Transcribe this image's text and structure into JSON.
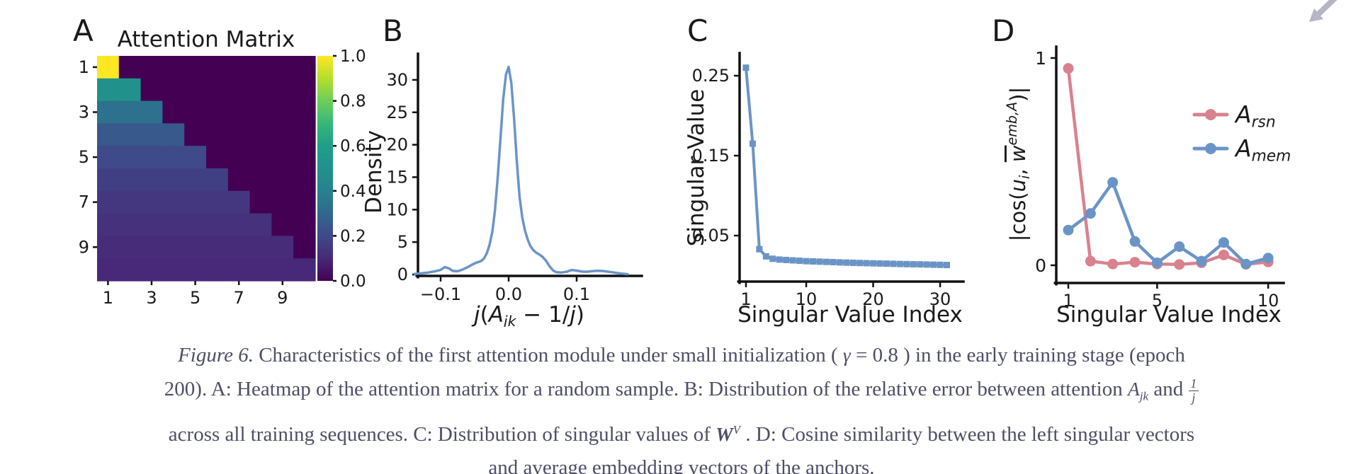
{
  "page": {
    "background": "#ffffff",
    "text_color": "#1a1a1a",
    "caption_color": "#4e4e67"
  },
  "corner_icon": {
    "name": "collapse-arrow",
    "color": "#b5b5c5"
  },
  "colors": {
    "blue_series": "#6b94c6",
    "pink_series": "#d9818f",
    "viridis_min": "#440154",
    "viridis_max": "#fde725"
  },
  "chart_data": [
    {
      "id": "A",
      "panel_label": "A",
      "type": "heatmap",
      "title": "Attention Matrix",
      "colormap": "viridis",
      "vmin": 0.0,
      "vmax": 1.0,
      "x_ticks": [
        "1",
        "3",
        "5",
        "7",
        "9"
      ],
      "y_ticks": [
        "1",
        "3",
        "5",
        "7",
        "9"
      ],
      "colorbar_ticks": [
        "1.0",
        "0.8",
        "0.6",
        "0.4",
        "0.2",
        "0.0"
      ],
      "matrix": [
        [
          1.0,
          0,
          0,
          0,
          0,
          0,
          0,
          0,
          0,
          0
        ],
        [
          0.5,
          0.5,
          0,
          0,
          0,
          0,
          0,
          0,
          0,
          0
        ],
        [
          0.333,
          0.333,
          0.333,
          0,
          0,
          0,
          0,
          0,
          0,
          0
        ],
        [
          0.25,
          0.25,
          0.25,
          0.25,
          0,
          0,
          0,
          0,
          0,
          0
        ],
        [
          0.2,
          0.2,
          0.2,
          0.2,
          0.2,
          0,
          0,
          0,
          0,
          0
        ],
        [
          0.167,
          0.167,
          0.167,
          0.167,
          0.167,
          0.167,
          0,
          0,
          0,
          0
        ],
        [
          0.143,
          0.143,
          0.143,
          0.143,
          0.143,
          0.143,
          0.143,
          0,
          0,
          0
        ],
        [
          0.125,
          0.125,
          0.125,
          0.125,
          0.125,
          0.125,
          0.125,
          0.125,
          0,
          0
        ],
        [
          0.111,
          0.111,
          0.111,
          0.111,
          0.111,
          0.111,
          0.111,
          0.111,
          0.111,
          0
        ],
        [
          0.1,
          0.1,
          0.1,
          0.1,
          0.1,
          0.1,
          0.1,
          0.1,
          0.1,
          0.1
        ]
      ]
    },
    {
      "id": "B",
      "panel_label": "B",
      "type": "line",
      "ylabel": "Density",
      "xlabel_text": "j(Ajk − 1/j)",
      "xlabel_parts": [
        {
          "t": "j",
          "i": 1
        },
        {
          "t": "("
        },
        {
          "t": "A",
          "i": 1
        },
        {
          "t": "jk",
          "i": 1,
          "sub": 1
        },
        {
          "t": " − 1/"
        },
        {
          "t": "j",
          "i": 1
        },
        {
          "t": ")"
        }
      ],
      "x_ticks": [
        "−0.1",
        "0.0",
        "0.1"
      ],
      "x_tick_values": [
        -0.1,
        0.0,
        0.1
      ],
      "y_ticks": [
        "0",
        "5",
        "10",
        "15",
        "20",
        "25",
        "30"
      ],
      "y_tick_values": [
        0,
        5,
        10,
        15,
        20,
        25,
        30
      ],
      "xlim": [
        -0.145,
        0.195
      ],
      "ylim": [
        0,
        34
      ],
      "color": "#6b94c6",
      "points": [
        [
          -0.138,
          0.1
        ],
        [
          -0.128,
          0.2
        ],
        [
          -0.118,
          0.3
        ],
        [
          -0.108,
          0.5
        ],
        [
          -0.1,
          0.7
        ],
        [
          -0.094,
          1.15
        ],
        [
          -0.088,
          0.95
        ],
        [
          -0.082,
          0.55
        ],
        [
          -0.075,
          0.5
        ],
        [
          -0.068,
          0.75
        ],
        [
          -0.06,
          1.15
        ],
        [
          -0.054,
          1.5
        ],
        [
          -0.048,
          1.8
        ],
        [
          -0.044,
          1.95
        ],
        [
          -0.04,
          2.1
        ],
        [
          -0.036,
          2.5
        ],
        [
          -0.032,
          3.3
        ],
        [
          -0.028,
          4.6
        ],
        [
          -0.024,
          6.6
        ],
        [
          -0.02,
          10
        ],
        [
          -0.016,
          15
        ],
        [
          -0.012,
          21
        ],
        [
          -0.008,
          27
        ],
        [
          -0.004,
          30.8
        ],
        [
          0,
          32
        ],
        [
          0.004,
          29.5
        ],
        [
          0.008,
          24
        ],
        [
          0.012,
          17.5
        ],
        [
          0.016,
          12
        ],
        [
          0.02,
          8.8
        ],
        [
          0.024,
          6.8
        ],
        [
          0.028,
          5.4
        ],
        [
          0.032,
          4.4
        ],
        [
          0.036,
          3.8
        ],
        [
          0.04,
          3.4
        ],
        [
          0.045,
          3.1
        ],
        [
          0.05,
          2.7
        ],
        [
          0.055,
          2.1
        ],
        [
          0.06,
          1.3
        ],
        [
          0.065,
          0.65
        ],
        [
          0.07,
          0.35
        ],
        [
          0.078,
          0.3
        ],
        [
          0.086,
          0.45
        ],
        [
          0.093,
          0.7
        ],
        [
          0.1,
          0.6
        ],
        [
          0.108,
          0.45
        ],
        [
          0.115,
          0.42
        ],
        [
          0.122,
          0.5
        ],
        [
          0.13,
          0.58
        ],
        [
          0.138,
          0.55
        ],
        [
          0.145,
          0.45
        ],
        [
          0.152,
          0.35
        ],
        [
          0.16,
          0.22
        ],
        [
          0.168,
          0.12
        ],
        [
          0.175,
          0.05
        ]
      ]
    },
    {
      "id": "C",
      "panel_label": "C",
      "type": "line",
      "marker": "square",
      "xlabel": "Singular Value Index",
      "ylabel": "Singular Value",
      "x_ticks": [
        "1",
        "10",
        "20",
        "30"
      ],
      "x_tick_values": [
        1,
        10,
        20,
        30
      ],
      "y_ticks": [
        "0.05",
        "0.15",
        "0.25"
      ],
      "y_tick_values": [
        0.05,
        0.15,
        0.25
      ],
      "color": "#6b94c6",
      "x_start": 1,
      "values": [
        0.26,
        0.165,
        0.033,
        0.024,
        0.021,
        0.02,
        0.0195,
        0.019,
        0.0185,
        0.018,
        0.0177,
        0.0174,
        0.0171,
        0.0168,
        0.0165,
        0.0162,
        0.016,
        0.0157,
        0.0155,
        0.0153,
        0.0151,
        0.0149,
        0.0147,
        0.0145,
        0.0143,
        0.0141,
        0.014,
        0.0138,
        0.0136,
        0.0134,
        0.0132
      ]
    },
    {
      "id": "D",
      "panel_label": "D",
      "type": "line",
      "marker": "circle",
      "xlabel": "Singular Value Index",
      "ylabel_text": "|cos(ui, w̄emb,A)|",
      "ylabel_parts": [
        {
          "t": "|cos("
        },
        {
          "t": "u",
          "i": 1
        },
        {
          "t": "i",
          "i": 1,
          "sub": 1
        },
        {
          "t": ", "
        },
        {
          "t": "w",
          "i": 1,
          "over": 1
        },
        {
          "t": "emb,A",
          "i": 1,
          "sup": 1
        },
        {
          "t": ")|"
        }
      ],
      "x_ticks": [
        "1",
        "5",
        "10"
      ],
      "x_tick_values": [
        1,
        5,
        10
      ],
      "y_ticks": [
        "1",
        "0"
      ],
      "y_tick_values": [
        1,
        0
      ],
      "legend_position": "upper right",
      "series": [
        {
          "name_base": "A",
          "name_sub": "rsn",
          "color": "#d9818f",
          "values": [
            0.95,
            0.02,
            0.006,
            0.015,
            0.006,
            0.004,
            0.012,
            0.05,
            0.005,
            0.016
          ]
        },
        {
          "name_base": "A",
          "name_sub": "mem",
          "color": "#6b94c6",
          "values": [
            0.17,
            0.25,
            0.4,
            0.115,
            0.012,
            0.09,
            0.02,
            0.11,
            0.006,
            0.035
          ]
        }
      ]
    }
  ],
  "caption": {
    "lines": [
      {
        "segments": [
          {
            "kind": "italic",
            "text": "Figure 6."
          },
          {
            "kind": "plain",
            "text": " Characteristics of the first attention module under small initialization ( "
          },
          {
            "kind": "math",
            "text": "γ"
          },
          {
            "kind": "plain",
            "text": " = 0.8 ) in the early training stage (epoch"
          }
        ]
      },
      {
        "segments": [
          {
            "kind": "plain",
            "text": "200). A: Heatmap of the attention matrix for a random sample. B: Distribution of the relative error between attention  "
          },
          {
            "kind": "math",
            "text": "A",
            "sub": "jk"
          },
          {
            "kind": "plain",
            "text": " and "
          },
          {
            "kind": "frac",
            "num": "1",
            "den": "j"
          }
        ]
      },
      {
        "segments": [
          {
            "kind": "plain",
            "text": "across all training sequences. C: Distribution of singular values of  "
          },
          {
            "kind": "math",
            "text": "W",
            "sup": "V",
            "bold": true
          },
          {
            "kind": "plain",
            "text": " . D: Cosine similarity between the left singular vectors"
          }
        ]
      },
      {
        "segments": [
          {
            "kind": "plain",
            "text": "and average embedding vectors of the anchors."
          }
        ]
      }
    ]
  }
}
